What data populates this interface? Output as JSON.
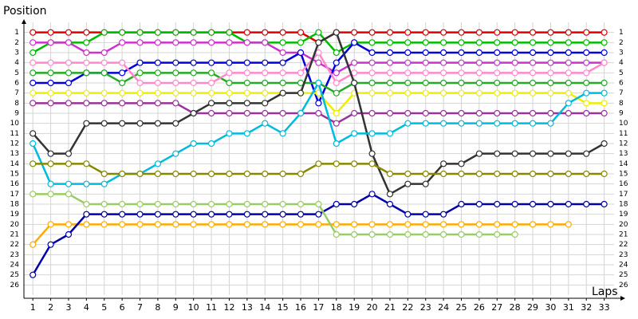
{
  "chart_data": {
    "type": "line",
    "y_label": "Position",
    "x_label": "Laps",
    "x": [
      1,
      2,
      3,
      4,
      5,
      6,
      7,
      8,
      9,
      10,
      11,
      12,
      13,
      14,
      15,
      16,
      17,
      18,
      19,
      20,
      21,
      22,
      23,
      24,
      25,
      26,
      27,
      28,
      29,
      30,
      31,
      32,
      33
    ],
    "xlim": [
      0.5,
      34
    ],
    "ylim": [
      27,
      0
    ],
    "y_inverted": true,
    "grid": true,
    "xticks": [
      1,
      2,
      3,
      4,
      5,
      6,
      7,
      8,
      9,
      10,
      11,
      12,
      13,
      14,
      15,
      16,
      17,
      18,
      19,
      20,
      21,
      22,
      23,
      24,
      25,
      26,
      27,
      28,
      29,
      30,
      31,
      32,
      33
    ],
    "yticks": [
      1,
      2,
      3,
      4,
      5,
      6,
      7,
      8,
      9,
      10,
      11,
      12,
      13,
      14,
      15,
      16,
      17,
      18,
      19,
      20,
      21,
      22,
      23,
      24,
      25,
      26
    ],
    "series": [
      {
        "color": "#e00000",
        "values": [
          1,
          1,
          1,
          1,
          1,
          1,
          1,
          1,
          1,
          1,
          1,
          1,
          1,
          1,
          1,
          1,
          2,
          1,
          1,
          1,
          1,
          1,
          1,
          1,
          1,
          1,
          1,
          1,
          1,
          1,
          1,
          1,
          1
        ]
      },
      {
        "color": "#00bb00",
        "values": [
          3,
          2,
          2,
          2,
          1,
          1,
          1,
          1,
          1,
          1,
          1,
          1,
          2,
          2,
          2,
          2,
          1,
          3,
          2,
          2,
          2,
          2,
          2,
          2,
          2,
          2,
          2,
          2,
          2,
          2,
          2,
          2,
          2
        ]
      },
      {
        "color": "#cc33cc",
        "values": [
          2,
          2,
          2,
          3,
          3,
          2,
          2,
          2,
          2,
          2,
          2,
          2,
          2,
          2,
          3,
          3,
          4,
          5,
          4,
          4,
          4,
          4,
          4,
          4,
          4,
          4,
          4,
          4,
          4,
          4,
          4,
          4,
          4
        ]
      },
      {
        "color": "#0000dd",
        "values": [
          6,
          6,
          6,
          5,
          5,
          5,
          4,
          4,
          4,
          4,
          4,
          4,
          4,
          4,
          4,
          3,
          8,
          4,
          2,
          3,
          3,
          3,
          3,
          3,
          3,
          3,
          3,
          3,
          3,
          3,
          3,
          3,
          3
        ]
      },
      {
        "color": "#22aa22",
        "values": [
          5,
          5,
          5,
          5,
          5,
          6,
          5,
          5,
          5,
          5,
          5,
          6,
          6,
          6,
          6,
          6,
          6,
          7,
          6,
          6,
          6,
          6,
          6,
          6,
          6,
          6,
          6,
          6,
          6,
          6,
          6,
          6,
          6
        ]
      },
      {
        "color": "#ff88cc",
        "values": [
          4,
          4,
          4,
          4,
          4,
          4,
          6,
          6,
          6,
          6,
          6,
          5,
          5,
          5,
          5,
          5,
          3,
          6,
          5,
          5,
          5,
          5,
          5,
          5,
          5,
          5,
          5,
          5,
          5,
          5,
          5,
          5,
          4
        ]
      },
      {
        "color": "#eeee00",
        "values": [
          7,
          7,
          7,
          7,
          7,
          7,
          7,
          7,
          7,
          7,
          7,
          7,
          7,
          7,
          7,
          7,
          7,
          9,
          7,
          7,
          7,
          7,
          7,
          7,
          7,
          7,
          7,
          7,
          7,
          7,
          7,
          8,
          8
        ]
      },
      {
        "color": "#993399",
        "values": [
          8,
          8,
          8,
          8,
          8,
          8,
          8,
          8,
          8,
          9,
          9,
          9,
          9,
          9,
          9,
          9,
          9,
          10,
          9,
          9,
          9,
          9,
          9,
          9,
          9,
          9,
          9,
          9,
          9,
          9,
          9,
          9,
          9
        ]
      },
      {
        "color": "#333333",
        "values": [
          11,
          13,
          13,
          10,
          10,
          10,
          10,
          10,
          10,
          9,
          8,
          8,
          8,
          8,
          7,
          7,
          2,
          1,
          6,
          13,
          17,
          16,
          16,
          14,
          14,
          13,
          13,
          13,
          13,
          13,
          13,
          13,
          12
        ]
      },
      {
        "color": "#00bbdd",
        "values": [
          12,
          16,
          16,
          16,
          16,
          15,
          15,
          14,
          13,
          12,
          12,
          11,
          11,
          10,
          11,
          9,
          6,
          12,
          11,
          11,
          11,
          10,
          10,
          10,
          10,
          10,
          10,
          10,
          10,
          10,
          8,
          7,
          7
        ]
      },
      {
        "color": "#ffaa00",
        "values": [
          22,
          20,
          20,
          20,
          20,
          20,
          20,
          20,
          20,
          20,
          20,
          20,
          20,
          20,
          20,
          20,
          20,
          20,
          20,
          20,
          20,
          20,
          20,
          20,
          20,
          20,
          20,
          20,
          20,
          20,
          20,
          null,
          null
        ]
      },
      {
        "color": "#0000aa",
        "values": [
          25,
          22,
          21,
          19,
          19,
          19,
          19,
          19,
          19,
          19,
          19,
          19,
          19,
          19,
          19,
          19,
          19,
          18,
          18,
          17,
          18,
          19,
          19,
          19,
          18,
          18,
          18,
          18,
          18,
          18,
          18,
          18,
          18
        ]
      },
      {
        "color": "#888800",
        "values": [
          14,
          14,
          14,
          14,
          15,
          15,
          15,
          15,
          15,
          15,
          15,
          15,
          15,
          15,
          15,
          15,
          14,
          14,
          14,
          14,
          15,
          15,
          15,
          15,
          15,
          15,
          15,
          15,
          15,
          15,
          15,
          15,
          15
        ]
      },
      {
        "color": "#99cc66",
        "values": [
          17,
          17,
          17,
          18,
          18,
          18,
          18,
          18,
          18,
          18,
          18,
          18,
          18,
          18,
          18,
          18,
          18,
          21,
          21,
          21,
          21,
          21,
          21,
          21,
          21,
          21,
          21,
          21,
          null,
          null,
          null,
          null,
          null
        ]
      }
    ]
  }
}
